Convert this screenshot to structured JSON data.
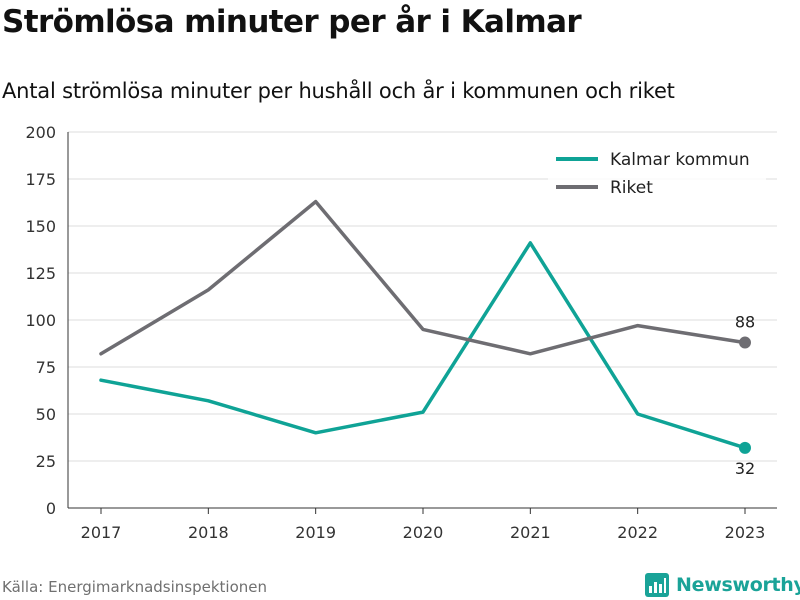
{
  "title": "Strömlösa minuter per år i Kalmar",
  "subtitle": "Antal strömlösa minuter per hushåll och år i kommunen och riket",
  "source": "Källa: Energimarknadsinspektionen",
  "brand": {
    "name": "Newsworthy",
    "icon": "newsworthy-logo-icon",
    "color": "#1aa398"
  },
  "chart_data": {
    "type": "line",
    "title": "",
    "xlabel": "",
    "ylabel": "",
    "x": [
      "2017",
      "2018",
      "2019",
      "2020",
      "2021",
      "2022",
      "2023"
    ],
    "ylim": [
      0,
      200
    ],
    "yticks": [
      "0",
      "25",
      "50",
      "75",
      "100",
      "125",
      "150",
      "175",
      "200"
    ],
    "grid": true,
    "legend_position": "top-right",
    "series": [
      {
        "name": "Kalmar kommun",
        "color": "#0fa396",
        "values": [
          68,
          57,
          40,
          51,
          141,
          50,
          32
        ],
        "end_label": "32"
      },
      {
        "name": "Riket",
        "color": "#6e6d72",
        "values": [
          82,
          116,
          163,
          95,
          82,
          97,
          88
        ],
        "end_label": "88"
      }
    ]
  }
}
